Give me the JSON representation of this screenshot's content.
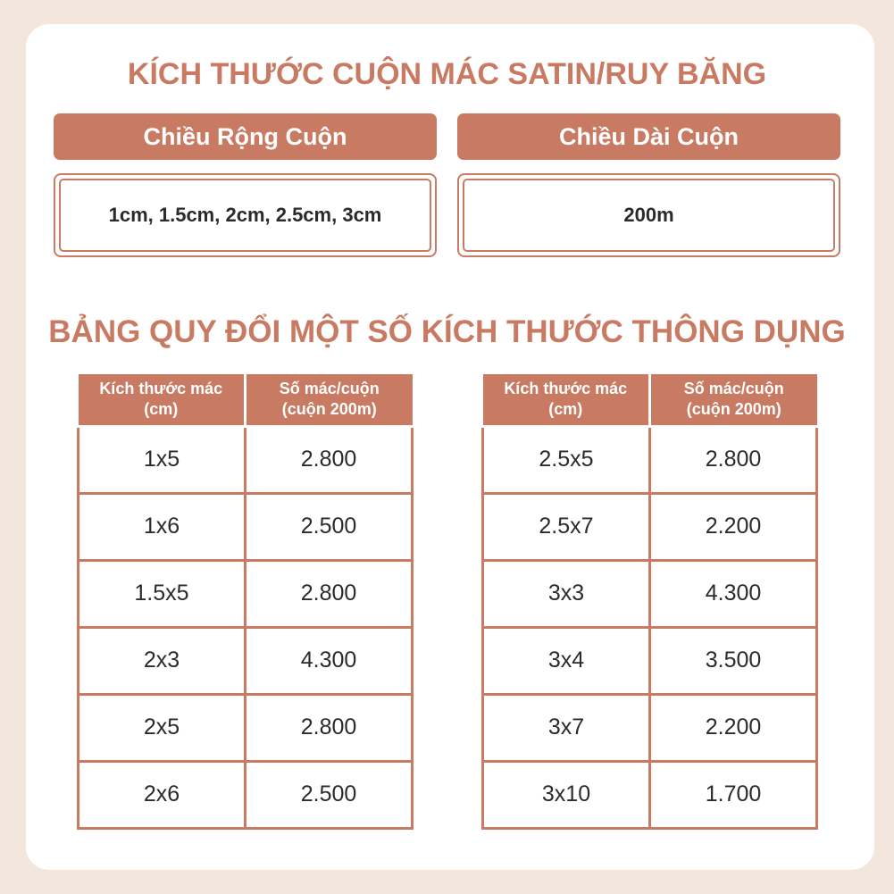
{
  "accent_color": "#c97a63",
  "title": "KÍCH THƯỚC CUỘN MÁC SATIN/RUY BĂNG",
  "width": {
    "label": "Chiều Rộng Cuộn",
    "value": "1cm, 1.5cm, 2cm, 2.5cm, 3cm"
  },
  "length": {
    "label": "Chiều Dài Cuộn",
    "value": "200m"
  },
  "table_title": "BẢNG QUY ĐỔI MỘT SỐ KÍCH THƯỚC THÔNG DỤNG",
  "headers": {
    "size_1": "Kích thước mác",
    "size_2": "(cm)",
    "count_1": "Số mác/cuộn",
    "count_2": "(cuộn 200m)"
  },
  "left_rows": [
    {
      "size": "1x5",
      "count": "2.800"
    },
    {
      "size": "1x6",
      "count": "2.500"
    },
    {
      "size": "1.5x5",
      "count": "2.800"
    },
    {
      "size": "2x3",
      "count": "4.300"
    },
    {
      "size": "2x5",
      "count": "2.800"
    },
    {
      "size": "2x6",
      "count": "2.500"
    }
  ],
  "right_rows": [
    {
      "size": "2.5x5",
      "count": "2.800"
    },
    {
      "size": "2.5x7",
      "count": "2.200"
    },
    {
      "size": "3x3",
      "count": "4.300"
    },
    {
      "size": "3x4",
      "count": "3.500"
    },
    {
      "size": "3x7",
      "count": "2.200"
    },
    {
      "size": "3x10",
      "count": "1.700"
    }
  ]
}
